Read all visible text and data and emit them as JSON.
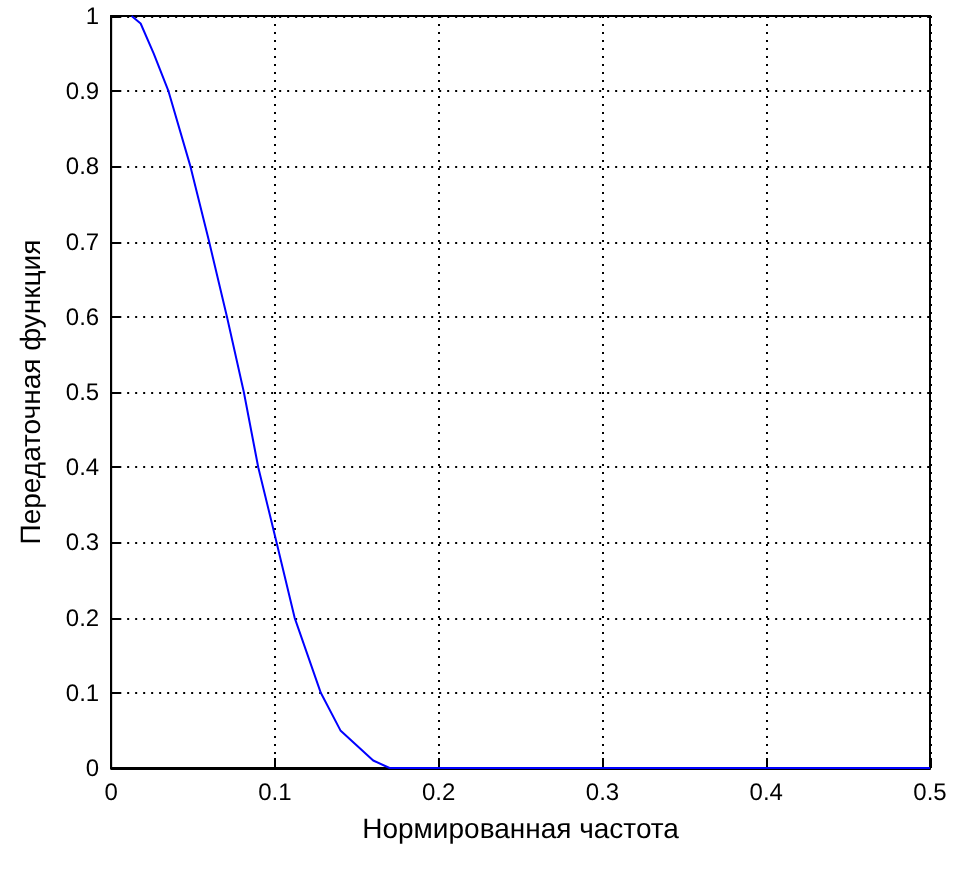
{
  "chart_data": {
    "type": "line",
    "xlabel": "Нормированная частота",
    "ylabel": "Передаточная функция",
    "x": [
      0.0125,
      0.018,
      0.026,
      0.035,
      0.0484,
      0.0598,
      0.0707,
      0.081,
      0.0898,
      0.101,
      0.112,
      0.128,
      0.14,
      0.16,
      0.17,
      0.5
    ],
    "series": [
      {
        "color": "#0000ff",
        "values": [
          1,
          0.99,
          0.95,
          0.9,
          0.8,
          0.7,
          0.6,
          0.5,
          0.4,
          0.3,
          0.2,
          0.1,
          0.05,
          0.01,
          0,
          0
        ]
      }
    ],
    "xlim": [
      0,
      0.5
    ],
    "xticks": [
      0,
      0.1,
      0.2,
      0.3,
      0.4,
      0.5
    ],
    "ylim": [
      0,
      1
    ],
    "yticks": [
      0,
      0.1,
      0.2,
      0.3,
      0.4,
      0.5,
      0.6,
      0.7,
      0.8,
      0.9,
      1
    ],
    "grid": true,
    "marker": "none",
    "line_style": "solid"
  }
}
